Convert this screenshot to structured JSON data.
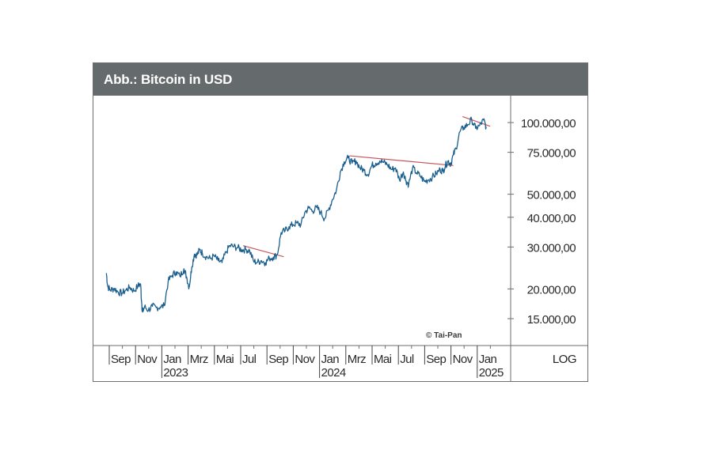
{
  "header": {
    "title": "Abb.: Bitcoin in USD"
  },
  "footer": {
    "scale_label": "LOG",
    "copyright": "© Tai-Pan"
  },
  "colors": {
    "header_bg": "#656a6c",
    "series": "#1b5f8f",
    "trendline": "#c9555e",
    "frame": "#6e6e6e",
    "text": "#2a2a2a"
  },
  "chart_data": {
    "type": "line",
    "title": "Abb.: Bitcoin in USD",
    "xlabel": "",
    "ylabel": "",
    "yscale": "log",
    "ylim": [
      12500,
      112000
    ],
    "grid": false,
    "y_ticks": [
      {
        "value": 100000,
        "label": "100.000,00"
      },
      {
        "value": 75000,
        "label": "75.000,00"
      },
      {
        "value": 50000,
        "label": "50.000,00"
      },
      {
        "value": 40000,
        "label": "40.000,00"
      },
      {
        "value": 30000,
        "label": "30.000,00"
      },
      {
        "value": 20000,
        "label": "20.000,00"
      },
      {
        "value": 15000,
        "label": "15.000,00"
      }
    ],
    "x_ticks": [
      {
        "month": 8,
        "label": "Sep",
        "year": ""
      },
      {
        "month": 10,
        "label": "Nov",
        "year": ""
      },
      {
        "month": 12,
        "label": "Jan",
        "year": "2023"
      },
      {
        "month": 14,
        "label": "Mrz",
        "year": ""
      },
      {
        "month": 16,
        "label": "Mai",
        "year": ""
      },
      {
        "month": 18,
        "label": "Jul",
        "year": ""
      },
      {
        "month": 20,
        "label": "Sep",
        "year": ""
      },
      {
        "month": 22,
        "label": "Nov",
        "year": ""
      },
      {
        "month": 24,
        "label": "Jan",
        "year": "2024"
      },
      {
        "month": 26,
        "label": "Mrz",
        "year": ""
      },
      {
        "month": 28,
        "label": "Mai",
        "year": ""
      },
      {
        "month": 30,
        "label": "Jul",
        "year": ""
      },
      {
        "month": 32,
        "label": "Sep",
        "year": ""
      },
      {
        "month": 34,
        "label": "Nov",
        "year": ""
      },
      {
        "month": 36,
        "label": "Jan",
        "year": "2025"
      }
    ],
    "series": [
      {
        "name": "Bitcoin (USD)",
        "x_unit": "months since Jan 2022",
        "x": [
          7.6,
          7.7,
          7.9,
          8.2,
          8.5,
          8.8,
          9.1,
          9.4,
          9.7,
          10.0,
          10.2,
          10.3,
          10.35,
          10.5,
          10.8,
          11.1,
          11.4,
          11.7,
          12.0,
          12.3,
          12.6,
          12.9,
          13.2,
          13.5,
          13.7,
          13.9,
          14.1,
          14.3,
          14.5,
          14.7,
          14.9,
          15.2,
          15.5,
          15.8,
          16.1,
          16.4,
          16.7,
          17.0,
          17.3,
          17.6,
          17.9,
          18.2,
          18.5,
          18.8,
          19.1,
          19.4,
          19.7,
          20.0,
          20.3,
          20.6,
          20.9,
          21.2,
          21.5,
          21.8,
          22.1,
          22.4,
          22.7,
          23.0,
          23.3,
          23.6,
          23.9,
          24.2,
          24.5,
          24.8,
          25.1,
          25.4,
          25.7,
          26.0,
          26.3,
          26.6,
          26.9,
          27.2,
          27.5,
          27.8,
          28.1,
          28.4,
          28.7,
          29.0,
          29.3,
          29.6,
          29.9,
          30.2,
          30.4,
          30.6,
          30.9,
          31.2,
          31.5,
          31.8,
          32.1,
          32.4,
          32.7,
          33.0,
          33.2,
          33.4,
          33.6,
          33.8,
          34.0,
          34.2,
          34.5,
          34.8,
          35.1,
          35.4,
          35.7,
          36.0,
          36.3,
          36.5
        ],
        "y": [
          23300,
          20500,
          19800,
          20100,
          19400,
          19200,
          19800,
          20300,
          19600,
          20600,
          21000,
          17000,
          16000,
          16800,
          16300,
          16900,
          16700,
          16800,
          17000,
          21500,
          22800,
          23600,
          22600,
          24300,
          22500,
          20300,
          24800,
          28000,
          27800,
          29200,
          28300,
          27300,
          26800,
          27500,
          26300,
          25800,
          28500,
          30400,
          30100,
          29800,
          29200,
          29300,
          29000,
          26100,
          25900,
          26300,
          25800,
          26900,
          27200,
          27800,
          34500,
          35100,
          36500,
          37300,
          37800,
          37200,
          41900,
          43800,
          42500,
          44000,
          42000,
          39500,
          43000,
          47500,
          52000,
          62000,
          68500,
          71000,
          67500,
          69000,
          64500,
          63000,
          60500,
          66000,
          67500,
          69000,
          68000,
          66500,
          63500,
          64500,
          57500,
          62000,
          57000,
          55000,
          64500,
          61500,
          59500,
          56500,
          57500,
          59000,
          61000,
          63500,
          62500,
          66000,
          69000,
          67000,
          73000,
          78000,
          91500,
          95500,
          98000,
          103000,
          94500,
          97000,
          102500,
          96000
        ]
      }
    ],
    "trendlines": [
      {
        "x": [
          18.0,
          21.1
        ],
        "y": [
          30400,
          27300
        ]
      },
      {
        "x": [
          26.1,
          34.0
        ],
        "y": [
          72500,
          66000
        ]
      },
      {
        "x": [
          34.7,
          36.8
        ],
        "y": [
          106000,
          96500
        ]
      }
    ],
    "annotations": [
      "© Tai-Pan",
      "LOG"
    ]
  }
}
